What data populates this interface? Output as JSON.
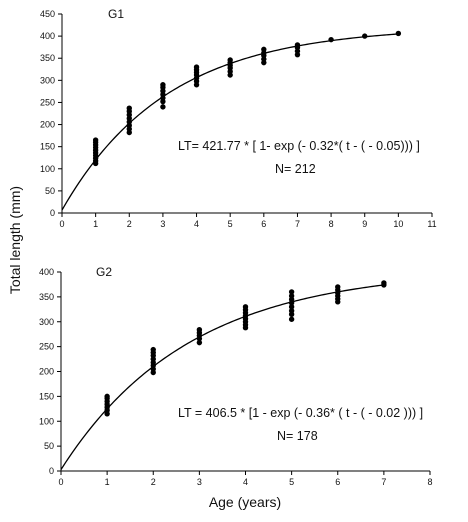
{
  "figure": {
    "ylabel": "Total length (mm)",
    "xlabel": "Age (years)"
  },
  "chart_data": [
    {
      "type": "scatter",
      "panel_label": "G1",
      "equation": "LT= 421.77 * [ 1- exp (- 0.32*( t - ( - 0.05))) ]",
      "sample_size": "N= 212",
      "xlim": [
        0,
        11
      ],
      "ylim": [
        0,
        450
      ],
      "x_ticks": [
        0,
        1,
        2,
        3,
        4,
        5,
        6,
        7,
        8,
        9,
        10,
        11
      ],
      "y_ticks": [
        0,
        50,
        100,
        150,
        200,
        250,
        300,
        350,
        400,
        450
      ],
      "x_tick_labels": [
        "0",
        "1",
        "2",
        "3",
        "4",
        "5",
        "6",
        "7",
        "8",
        "9",
        "10",
        "11"
      ],
      "y_tick_labels": [
        "0",
        "50",
        "100",
        "150",
        "200",
        "250",
        "300",
        "350",
        "400",
        "450"
      ],
      "fit": {
        "model": "von Bertalanffy",
        "Linf": 421.77,
        "k": 0.32,
        "t0": -0.05,
        "x_range": [
          0,
          10
        ]
      },
      "points": [
        [
          1,
          112
        ],
        [
          1,
          118
        ],
        [
          1,
          124
        ],
        [
          1,
          130
        ],
        [
          1,
          136
        ],
        [
          1,
          142
        ],
        [
          1,
          148
        ],
        [
          1,
          154
        ],
        [
          1,
          160
        ],
        [
          1,
          165
        ],
        [
          2,
          182
        ],
        [
          2,
          190
        ],
        [
          2,
          198
        ],
        [
          2,
          206
        ],
        [
          2,
          214
        ],
        [
          2,
          222
        ],
        [
          2,
          230
        ],
        [
          2,
          237
        ],
        [
          3,
          240
        ],
        [
          3,
          252
        ],
        [
          3,
          260
        ],
        [
          3,
          268
        ],
        [
          3,
          276
        ],
        [
          3,
          284
        ],
        [
          3,
          290
        ],
        [
          4,
          290
        ],
        [
          4,
          298
        ],
        [
          4,
          305
        ],
        [
          4,
          312
        ],
        [
          4,
          318
        ],
        [
          4,
          324
        ],
        [
          4,
          330
        ],
        [
          5,
          312
        ],
        [
          5,
          320
        ],
        [
          5,
          328
        ],
        [
          5,
          334
        ],
        [
          5,
          340
        ],
        [
          5,
          346
        ],
        [
          6,
          340
        ],
        [
          6,
          348
        ],
        [
          6,
          356
        ],
        [
          6,
          362
        ],
        [
          6,
          370
        ],
        [
          7,
          358
        ],
        [
          7,
          366
        ],
        [
          7,
          374
        ],
        [
          7,
          380
        ],
        [
          8,
          392
        ],
        [
          9,
          400
        ],
        [
          10,
          406
        ]
      ]
    },
    {
      "type": "scatter",
      "panel_label": "G2",
      "equation": "LT = 406.5 * [1 - exp (- 0.36* ( t - ( - 0.02 ))) ]",
      "sample_size": "N= 178",
      "xlim": [
        0,
        8
      ],
      "ylim": [
        0,
        400
      ],
      "x_ticks": [
        0,
        1,
        2,
        3,
        4,
        5,
        6,
        7,
        8
      ],
      "y_ticks": [
        0,
        50,
        100,
        150,
        200,
        250,
        300,
        350,
        400
      ],
      "x_tick_labels": [
        "0",
        "1",
        "2",
        "3",
        "4",
        "5",
        "6",
        "7",
        "8"
      ],
      "y_tick_labels": [
        "0",
        "50",
        "100",
        "150",
        "200",
        "250",
        "300",
        "350",
        "400"
      ],
      "fit": {
        "model": "von Bertalanffy",
        "Linf": 406.5,
        "k": 0.36,
        "t0": -0.02,
        "x_range": [
          0,
          7
        ]
      },
      "points": [
        [
          1,
          115
        ],
        [
          1,
          122
        ],
        [
          1,
          128
        ],
        [
          1,
          134
        ],
        [
          1,
          140
        ],
        [
          1,
          146
        ],
        [
          1,
          150
        ],
        [
          2,
          198
        ],
        [
          2,
          205
        ],
        [
          2,
          212
        ],
        [
          2,
          218
        ],
        [
          2,
          225
        ],
        [
          2,
          232
        ],
        [
          2,
          238
        ],
        [
          2,
          244
        ],
        [
          3,
          258
        ],
        [
          3,
          266
        ],
        [
          3,
          272
        ],
        [
          3,
          278
        ],
        [
          3,
          284
        ],
        [
          4,
          288
        ],
        [
          4,
          294
        ],
        [
          4,
          300
        ],
        [
          4,
          306
        ],
        [
          4,
          312
        ],
        [
          4,
          318
        ],
        [
          4,
          324
        ],
        [
          4,
          330
        ],
        [
          5,
          305
        ],
        [
          5,
          315
        ],
        [
          5,
          322
        ],
        [
          5,
          330
        ],
        [
          5,
          338
        ],
        [
          5,
          345
        ],
        [
          5,
          352
        ],
        [
          5,
          360
        ],
        [
          6,
          340
        ],
        [
          6,
          346
        ],
        [
          6,
          352
        ],
        [
          6,
          358
        ],
        [
          6,
          364
        ],
        [
          6,
          370
        ],
        [
          7,
          374
        ],
        [
          7,
          378
        ]
      ]
    }
  ]
}
